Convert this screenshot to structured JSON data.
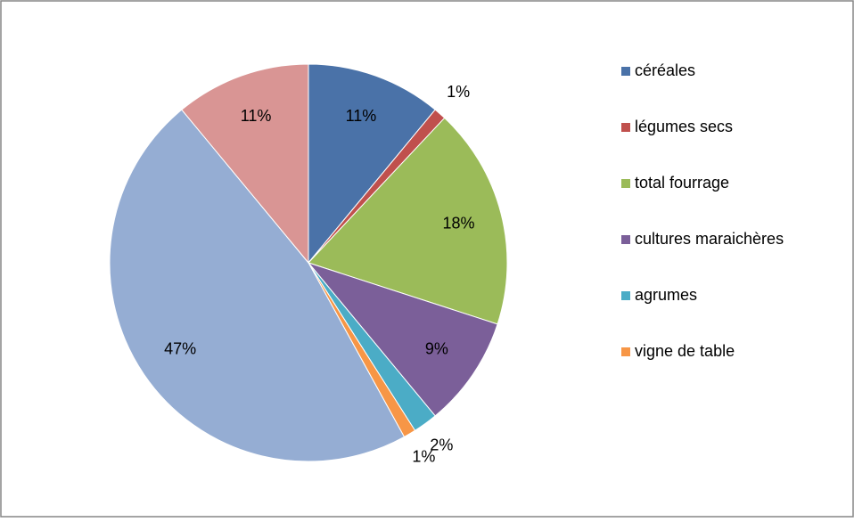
{
  "chart_data": {
    "type": "pie",
    "categories": [
      "céréales",
      "légumes secs",
      "total fourrage",
      "cultures maraichères",
      "agrumes",
      "vigne de table",
      null,
      null
    ],
    "values": [
      11,
      1,
      18,
      9,
      2,
      1,
      47,
      11
    ],
    "value_labels": [
      "11%",
      "1%",
      "18%",
      "9%",
      "2%",
      "1%",
      "47%",
      "11%"
    ],
    "colors": [
      "#4a72a8",
      "#c0504d",
      "#9bbb59",
      "#7b5f99",
      "#4bacc6",
      "#f79646",
      "#95add3",
      "#d99594"
    ],
    "legend": "right"
  }
}
